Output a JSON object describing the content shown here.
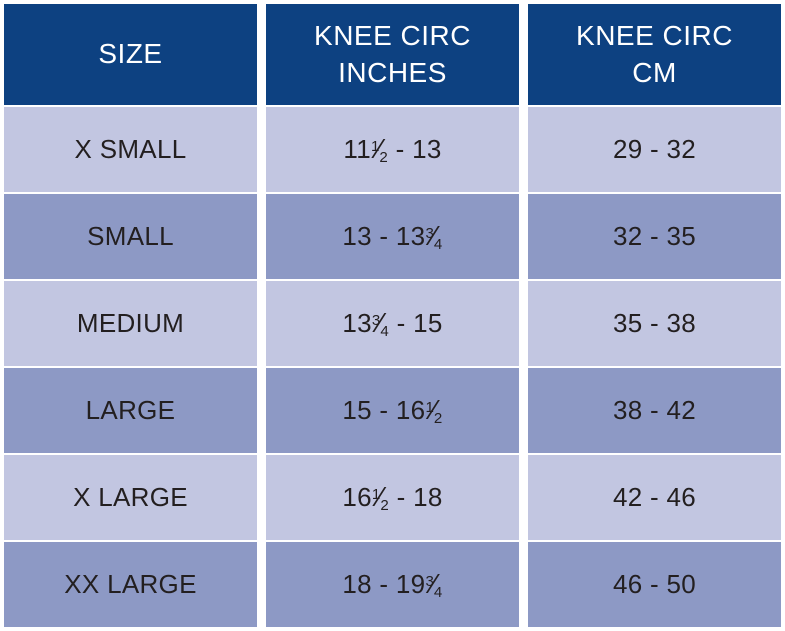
{
  "table": {
    "columns": [
      {
        "line1": "SIZE",
        "line2": ""
      },
      {
        "line1": "KNEE CIRC",
        "line2": "INCHES"
      },
      {
        "line1": "KNEE CIRC",
        "line2": "CM"
      }
    ],
    "rows": [
      {
        "size": "X SMALL",
        "inches": "11{1/2} - 13",
        "cm": "29 - 32"
      },
      {
        "size": "SMALL",
        "inches": "13 - 13{3/4}",
        "cm": "32 - 35"
      },
      {
        "size": "MEDIUM",
        "inches": "13{3/4} - 15",
        "cm": "35 - 38"
      },
      {
        "size": "LARGE",
        "inches": "15 - 16{1/2}",
        "cm": "38 - 42"
      },
      {
        "size": "X LARGE",
        "inches": "16{1/2} - 18",
        "cm": "42 - 46"
      },
      {
        "size": "XX LARGE",
        "inches": "18 - 19{3/4}",
        "cm": "46 - 50"
      }
    ],
    "colors": {
      "header_bg": "#0d4181",
      "header_text": "#ffffff",
      "row_light": "#c2c6e1",
      "row_dark": "#8d99c5",
      "body_text": "#231f20",
      "gap": "#ffffff"
    }
  },
  "chart_data": {
    "type": "table",
    "columns": [
      "SIZE",
      "KNEE CIRC INCHES",
      "KNEE CIRC CM"
    ],
    "rows": [
      [
        "X SMALL",
        "11 1/2 - 13",
        "29 - 32"
      ],
      [
        "SMALL",
        "13 - 13 3/4",
        "32 - 35"
      ],
      [
        "MEDIUM",
        "13 3/4 - 15",
        "35 - 38"
      ],
      [
        "LARGE",
        "15 - 16 1/2",
        "38 - 42"
      ],
      [
        "X LARGE",
        "16 1/2 - 18",
        "42 - 46"
      ],
      [
        "XX LARGE",
        "18 - 19 3/4",
        "46 - 50"
      ]
    ],
    "layout_hints": {
      "header_background": "#0d4181",
      "alternating_row_colors": [
        "#c2c6e1",
        "#8d99c5"
      ],
      "grid": "white gaps between columns"
    }
  }
}
